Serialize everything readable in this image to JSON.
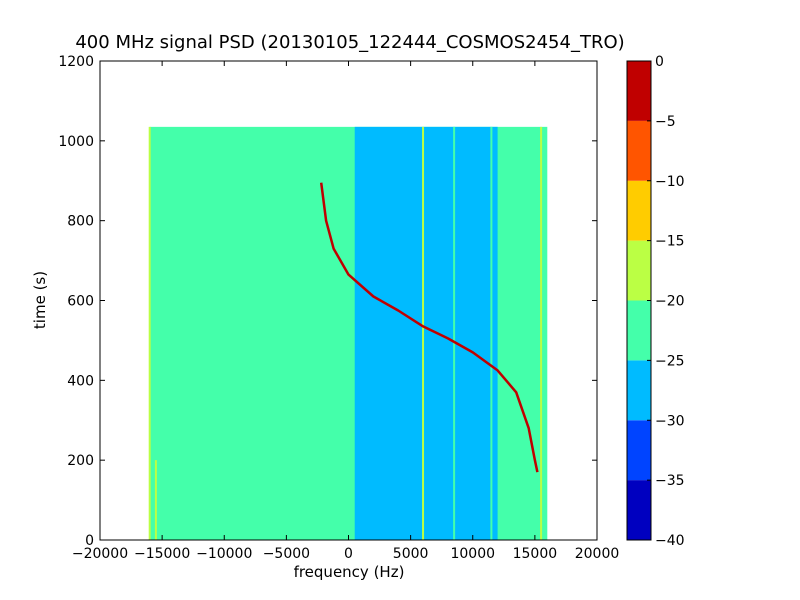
{
  "chart_data": {
    "type": "heatmap",
    "title": "400 MHz signal PSD (20130105_122444_COSMOS2454_TRO)",
    "xlabel": "frequency (Hz)",
    "ylabel": "time (s)",
    "xlim": [
      -20000,
      20000
    ],
    "ylim": [
      0,
      1200
    ],
    "x_ticks": [
      -20000,
      -15000,
      -10000,
      -5000,
      0,
      5000,
      10000,
      15000,
      20000
    ],
    "y_ticks": [
      0,
      200,
      400,
      600,
      800,
      1000,
      1200
    ],
    "x_tick_labels": [
      "−20000",
      "−15000",
      "−10000",
      "−5000",
      "0",
      "5000",
      "10000",
      "15000",
      "20000"
    ],
    "y_tick_labels": [
      "0",
      "200",
      "400",
      "600",
      "800",
      "1000",
      "1200"
    ],
    "data_extent": {
      "x": [
        -16000,
        16000
      ],
      "y": [
        0,
        1035
      ]
    },
    "colorbar": {
      "range": [
        -40,
        0
      ],
      "levels": [
        -40,
        -35,
        -30,
        -25,
        -20,
        -15,
        -10,
        -5,
        0
      ],
      "tick_labels": [
        "−40",
        "−35",
        "−30",
        "−25",
        "−20",
        "−15",
        "−10",
        "−5",
        "0"
      ],
      "colors": [
        "#0000c0",
        "#0044ff",
        "#00bbff",
        "#44ffaa",
        "#bbff44",
        "#ffcc00",
        "#ff5500",
        "#c00000"
      ]
    },
    "regions": [
      {
        "x": [
          -16000,
          16000
        ],
        "level": -22.5,
        "note": "background"
      },
      {
        "x": [
          500,
          12000
        ],
        "level": -27.5,
        "note": "noisy band"
      }
    ],
    "traces": {
      "main_doppler_curve": {
        "level": -2.5,
        "points": [
          {
            "f": -2200,
            "t": 895
          },
          {
            "f": -1800,
            "t": 800
          },
          {
            "f": -1200,
            "t": 730
          },
          {
            "f": 0,
            "t": 665
          },
          {
            "f": 2000,
            "t": 610
          },
          {
            "f": 4000,
            "t": 575
          },
          {
            "f": 6000,
            "t": 535
          },
          {
            "f": 8000,
            "t": 505
          },
          {
            "f": 10000,
            "t": 470
          },
          {
            "f": 12000,
            "t": 425
          },
          {
            "f": 13500,
            "t": 370
          },
          {
            "f": 14500,
            "t": 280
          },
          {
            "f": 15000,
            "t": 200
          },
          {
            "f": 15200,
            "t": 170
          }
        ]
      },
      "vertical_lines": [
        {
          "f": -16000,
          "t": [
            0,
            1035
          ],
          "level": -17.5
        },
        {
          "f": -15500,
          "t": [
            0,
            200
          ],
          "level": -17.5
        },
        {
          "f": 6000,
          "t": [
            0,
            1035
          ],
          "level": -17.5
        },
        {
          "f": 8500,
          "t": [
            0,
            1035
          ],
          "level": -22.5
        },
        {
          "f": 11500,
          "t": [
            0,
            1035
          ],
          "level": -22.5
        },
        {
          "f": 15500,
          "t": [
            0,
            1035
          ],
          "level": -17.5
        }
      ]
    }
  }
}
